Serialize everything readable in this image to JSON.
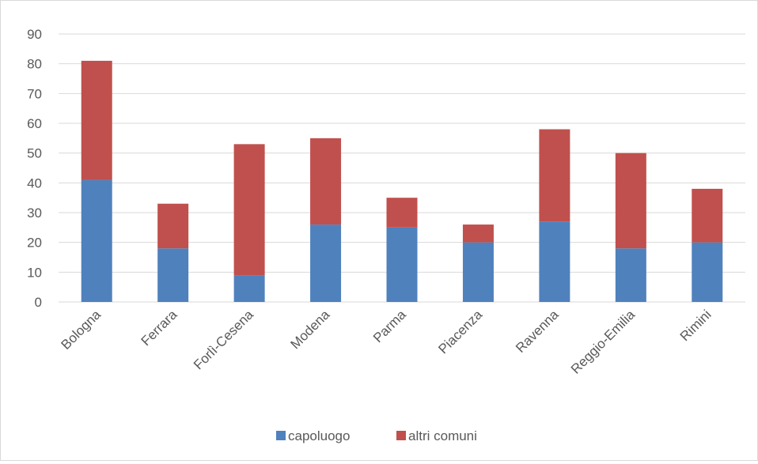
{
  "chart_data": {
    "type": "bar",
    "stacked": true,
    "title": "",
    "xlabel": "",
    "ylabel": "",
    "ylim": [
      0,
      90
    ],
    "y_ticks": [
      0,
      10,
      20,
      30,
      40,
      50,
      60,
      70,
      80,
      90
    ],
    "grid": true,
    "legend_position": "bottom",
    "categories": [
      "Bologna",
      "Ferrara",
      "Forlì-Cesena",
      "Modena",
      "Parma",
      "Piacenza",
      "Ravenna",
      "Reggio-Emilia",
      "Rimini"
    ],
    "series": [
      {
        "name": "capoluogo",
        "color": "#4f81bd",
        "values": [
          41,
          18,
          9,
          26,
          25,
          20,
          27,
          18,
          20
        ]
      },
      {
        "name": "altri comuni",
        "color": "#c0504d",
        "values": [
          40,
          15,
          44,
          29,
          10,
          6,
          31,
          32,
          18
        ]
      }
    ]
  },
  "colors": {
    "gridline": "#d9d9d9",
    "axis_text": "#595959"
  }
}
